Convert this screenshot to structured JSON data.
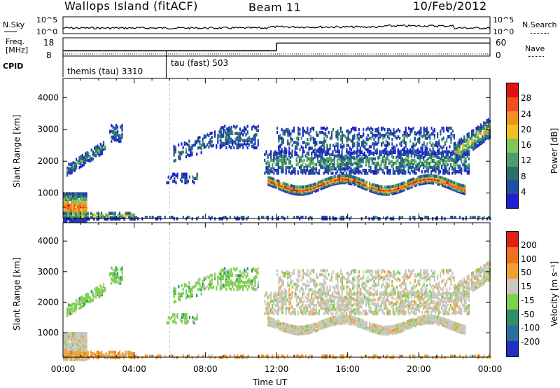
{
  "header": {
    "station": "Wallops Island (fitACF)",
    "beam": "Beam 11",
    "date": "10/Feb/2012"
  },
  "top_panels": {
    "nsky_label": "N.Sky",
    "nsky_ticks": [
      "10^5",
      "10^0"
    ],
    "nsearch_label": "N.Search",
    "nsearch_ticks": [
      "10^5",
      "10^0"
    ],
    "freq_label": "Freq.",
    "freq_unit": "[MHz]",
    "freq_ticks": [
      "18",
      "8"
    ],
    "nave_label": "Nave",
    "nave_ticks": [
      "60",
      "0"
    ],
    "cpid_label": "CPID",
    "cpid_segments": [
      {
        "label": "themis (tau) 3310",
        "start_hour": 0,
        "end_hour": 5.8
      },
      {
        "label": "tau (fast) 503",
        "start_hour": 5.8,
        "end_hour": 24
      }
    ],
    "freq_steps": [
      {
        "start_hour": 0,
        "end_hour": 12,
        "value": 10.5
      },
      {
        "start_hour": 12,
        "end_hour": 24,
        "value": 15.5
      }
    ]
  },
  "chart_data": [
    {
      "type": "heatmap",
      "title": "",
      "xlabel": "",
      "ylabel": "Slant Range [km]",
      "x_tick_labels": [
        "00:00",
        "04:00",
        "08:00",
        "12:00",
        "16:00",
        "20:00",
        "00:00"
      ],
      "x_range_hours": [
        0,
        24
      ],
      "ylim": [
        200,
        4600
      ],
      "y_ticks": [
        1000,
        2000,
        3000,
        4000
      ],
      "colorbar_label": "Power [dB]",
      "colorbar_ticks": [
        "28",
        "24",
        "20",
        "16",
        "12",
        "8",
        "4"
      ],
      "colorbar_colors": [
        "#2020d0",
        "#2050a0",
        "#2a6f6a",
        "#4f9e6a",
        "#7fc55a",
        "#f0c020",
        "#f09020",
        "#f05020",
        "#e01010"
      ]
    },
    {
      "type": "heatmap",
      "title": "",
      "xlabel": "Time UT",
      "ylabel": "Slant Range [km]",
      "x_tick_labels": [
        "00:00",
        "04:00",
        "08:00",
        "12:00",
        "16:00",
        "20:00",
        "00:00"
      ],
      "x_range_hours": [
        0,
        24
      ],
      "ylim": [
        200,
        4600
      ],
      "y_ticks": [
        1000,
        2000,
        3000,
        4000
      ],
      "colorbar_label": "Velocity [m s⁻¹]",
      "colorbar_ticks": [
        "200",
        "100",
        "50",
        "15",
        "-15",
        "-50",
        "-100",
        "-200"
      ],
      "colorbar_colors": [
        "#2030c0",
        "#2a6fa0",
        "#2f8f6a",
        "#7fd050",
        "#c8c8c0",
        "#f0a030",
        "#f07020",
        "#e02010"
      ]
    }
  ]
}
